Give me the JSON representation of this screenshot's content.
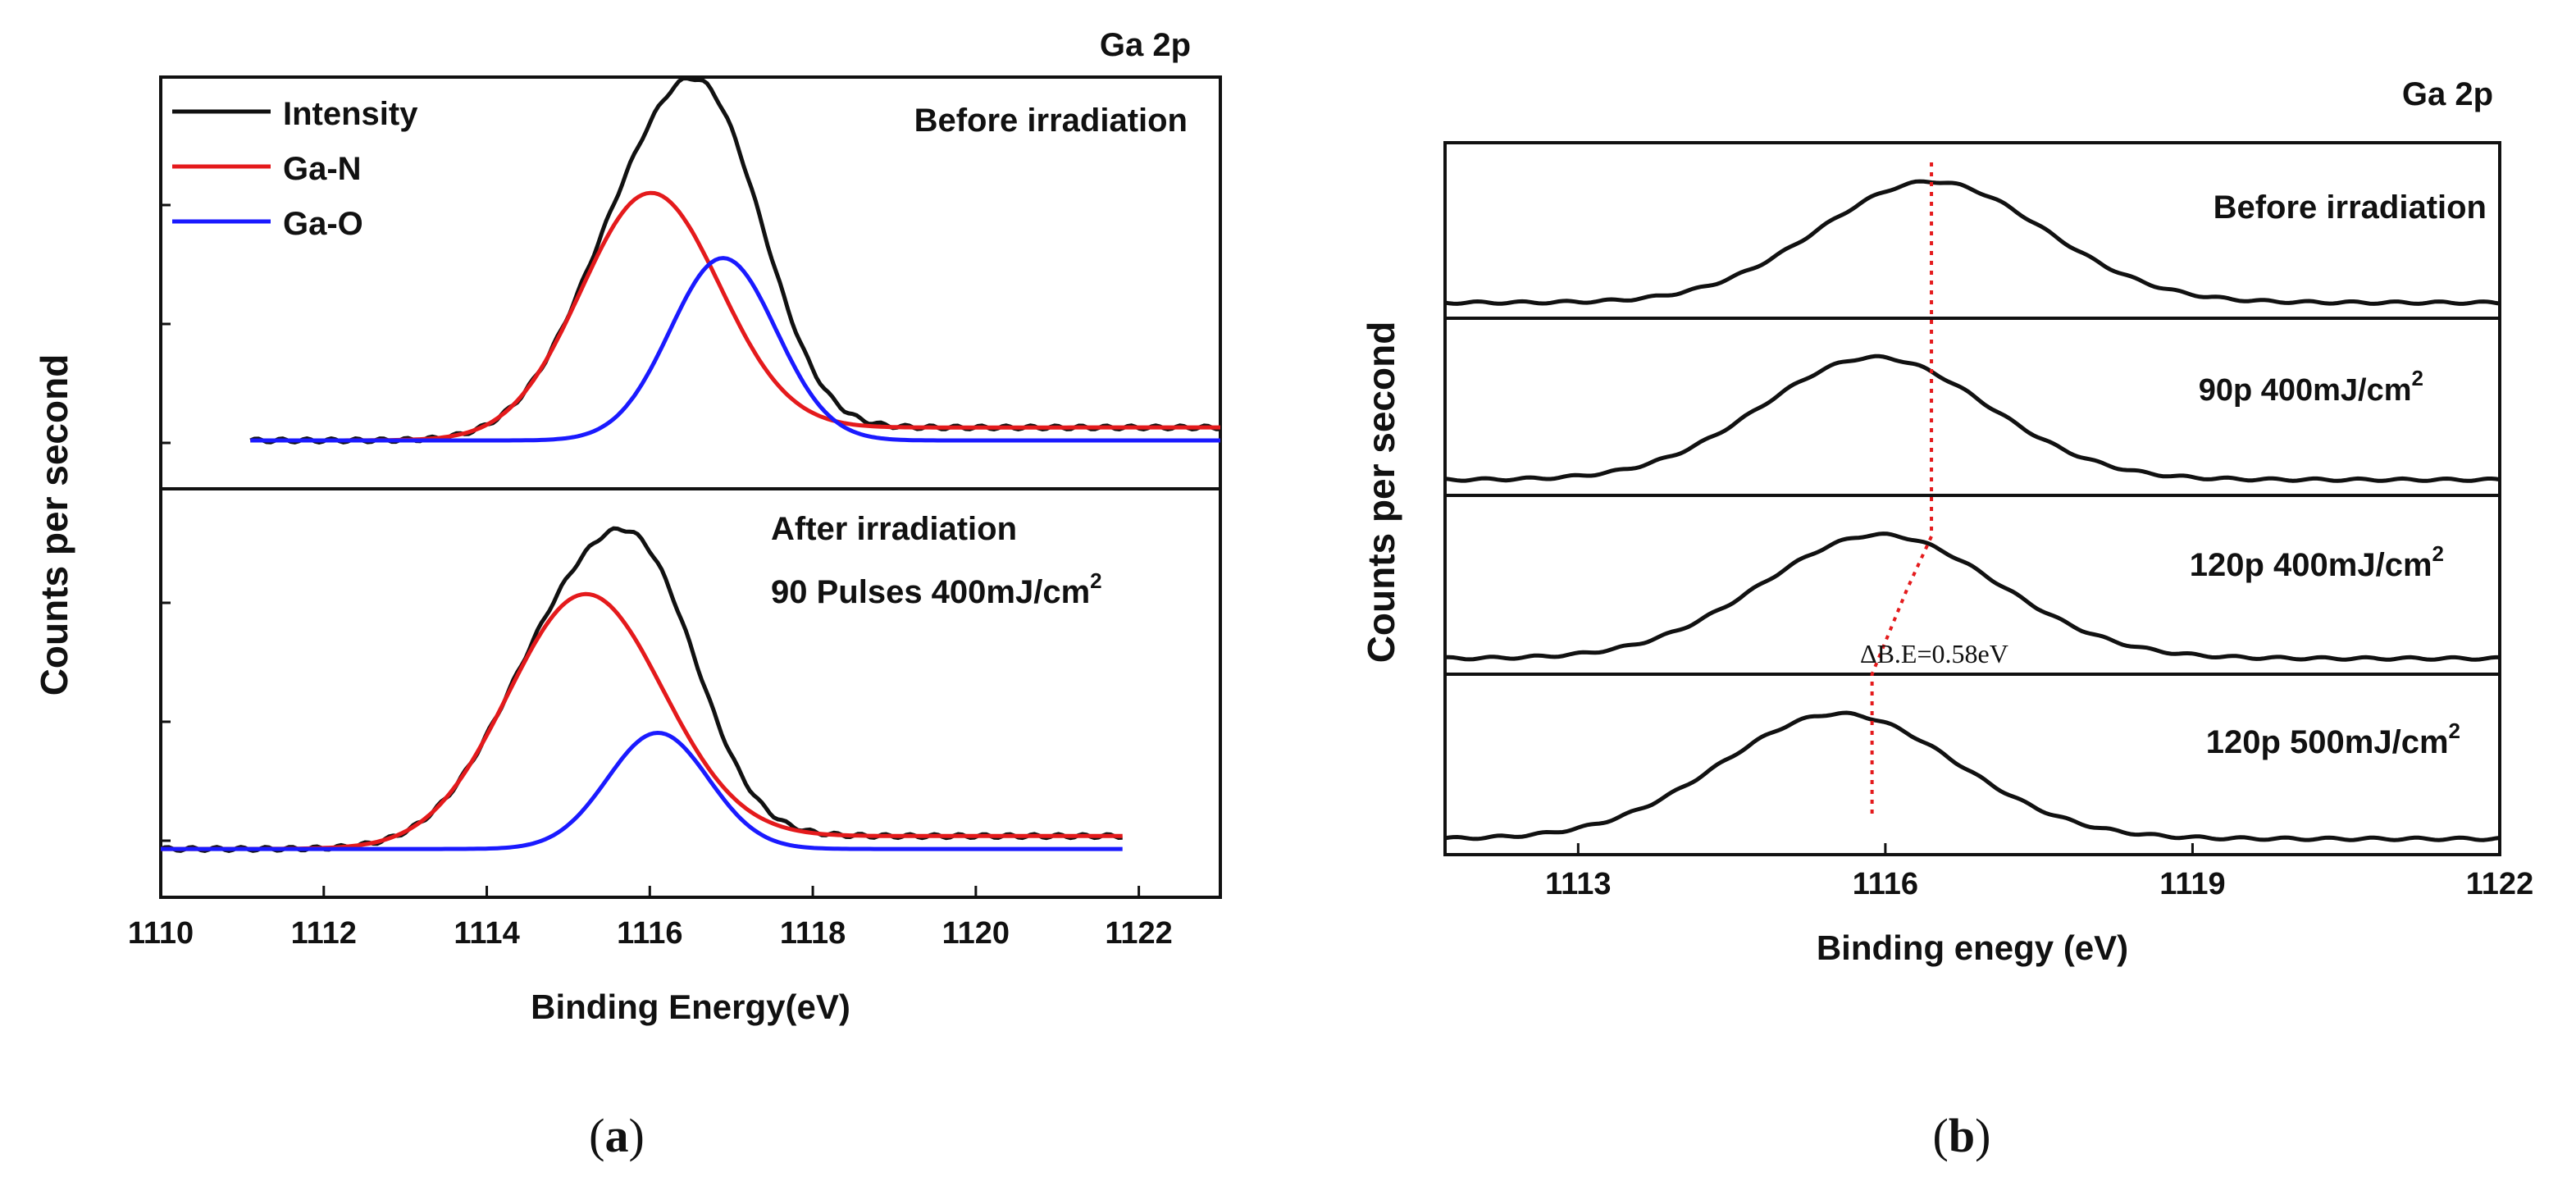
{
  "chart_data": [
    {
      "panel_label": "(a)",
      "panel_letter": "a",
      "type": "line",
      "title": "Ga 2p",
      "xlabel": "Binding Energy(eV)",
      "ylabel": "Counts per second",
      "xlim": [
        1110,
        1123
      ],
      "xticks": [
        "1110",
        "1112",
        "1114",
        "1116",
        "1118",
        "1120",
        "1122"
      ],
      "legend": [
        {
          "label": "Intensity",
          "color": "#111111"
        },
        {
          "label": "Ga-N",
          "color": "#e41a1c"
        },
        {
          "label": "Ga-O",
          "color": "#1a1aff"
        }
      ],
      "subplots": [
        {
          "annotation": "Before irradiation",
          "annotation2": "",
          "ylim": [
            0,
            1.05
          ],
          "x_start": 1111.1,
          "x_end": 1123.0,
          "baseline": 0.01,
          "tail": 0.04,
          "components": [
            {
              "name": "Ga-N",
              "color": "#e41a1c",
              "center": 1116.0,
              "amp": 0.74,
              "sigma": 0.85
            },
            {
              "name": "Ga-O",
              "color": "#1a1aff",
              "center": 1116.9,
              "amp": 0.56,
              "sigma": 0.65
            }
          ],
          "envelope_peak": 1116.45
        },
        {
          "annotation": "After irradiation",
          "annotation2": "90 Pulses 400mJ/cm",
          "annotation2_sup": "2",
          "ylim": [
            0,
            1.05
          ],
          "x_start": 1110.0,
          "x_end": 1121.8,
          "baseline": 0.01,
          "tail": 0.04,
          "components": [
            {
              "name": "Ga-N",
              "color": "#e41a1c",
              "center": 1115.2,
              "amp": 0.77,
              "sigma": 0.95
            },
            {
              "name": "Ga-O",
              "color": "#1a1aff",
              "center": 1116.1,
              "amp": 0.36,
              "sigma": 0.62
            }
          ],
          "envelope_peak": 1115.55
        }
      ]
    },
    {
      "panel_label": "(b)",
      "panel_letter": "b",
      "type": "line",
      "title": "Ga 2p",
      "xlabel": "Binding enegy (eV)",
      "ylabel": "Counts per second",
      "xlim": [
        1111.7,
        1122
      ],
      "xticks": [
        "1113",
        "1116",
        "1119",
        "1122"
      ],
      "xtick_values": [
        1113,
        1116,
        1119,
        1122
      ],
      "annotation": "ΔB.E=0.58eV",
      "subplots": [
        {
          "annotation": "Before irradiation",
          "sup": "",
          "center": 1116.45,
          "amp": 0.82,
          "sigma": 1.1,
          "baseline": 0.05
        },
        {
          "annotation": "90p 400mJ/cm",
          "sup": "2",
          "center": 1115.9,
          "amp": 0.82,
          "sigma": 1.1,
          "baseline": 0.05
        },
        {
          "annotation": "120p 400mJ/cm",
          "sup": "2",
          "center": 1115.95,
          "amp": 0.82,
          "sigma": 1.15,
          "baseline": 0.05
        },
        {
          "annotation": "120p 500mJ/cm",
          "sup": "2",
          "center": 1115.55,
          "amp": 0.82,
          "sigma": 1.15,
          "baseline": 0.05
        }
      ],
      "shift_line": {
        "before_peak": 1116.45,
        "after_peak": 1115.87,
        "color": "#e41a1c"
      }
    }
  ]
}
